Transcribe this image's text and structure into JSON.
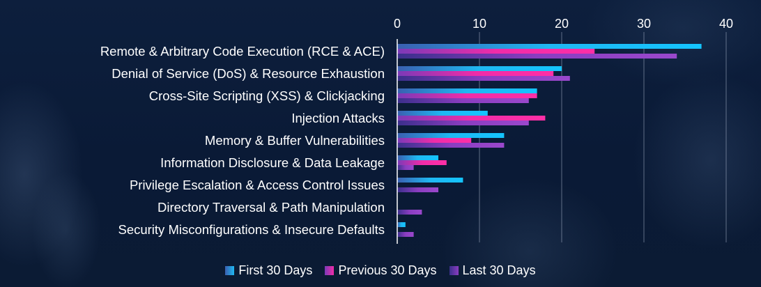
{
  "chart_data": {
    "type": "bar",
    "orientation": "horizontal",
    "title": "",
    "xlabel": "",
    "ylabel": "",
    "xlim": [
      0,
      40
    ],
    "ticks": [
      0,
      10,
      20,
      30,
      40
    ],
    "categories": [
      "Remote & Arbitrary Code Execution (RCE & ACE)",
      "Denial of Service (DoS) & Resource Exhaustion",
      "Cross-Site Scripting (XSS) & Clickjacking",
      "Injection Attacks",
      "Memory & Buffer Vulnerabilities",
      "Information Disclosure & Data Leakage",
      "Privilege Escalation & Access Control Issues",
      "Directory Traversal & Path Manipulation",
      "Security Misconfigurations & Insecure Defaults"
    ],
    "series": [
      {
        "name": "First 30 Days",
        "color": "#1fb8f2",
        "values": [
          37,
          20,
          17,
          11,
          13,
          5,
          8,
          0,
          1
        ]
      },
      {
        "name": "Previous 30 Days",
        "color": "#f02ca8",
        "values": [
          24,
          19,
          17,
          18,
          9,
          6,
          0,
          0,
          0
        ]
      },
      {
        "name": "Last 30 Days",
        "color": "#8a3dc0",
        "values": [
          34,
          21,
          16,
          16,
          13,
          2,
          5,
          3,
          2
        ]
      }
    ],
    "grid": true,
    "legend_position": "bottom"
  }
}
